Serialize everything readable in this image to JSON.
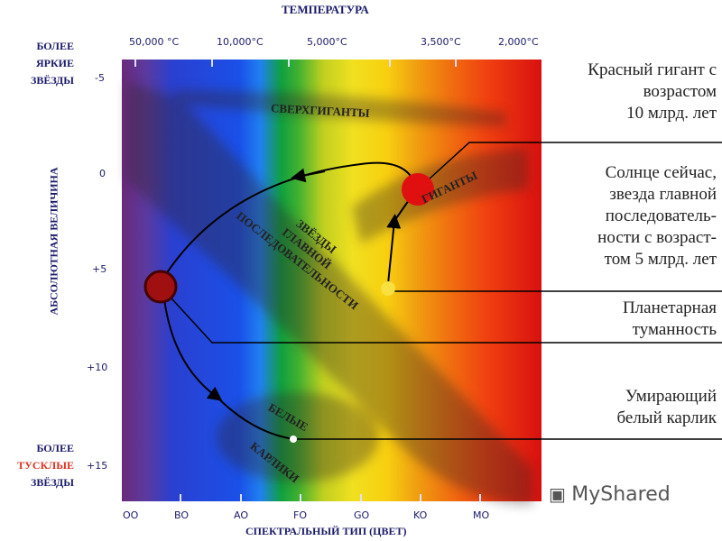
{
  "top_title": "ТЕМПЕРАТУРА",
  "temperatures": [
    "50,000 °C",
    "10,000°C",
    "5,000°C",
    "3,500°C",
    "2,000°C"
  ],
  "bright_label": [
    "БОЛЕЕ",
    "ЯРКИЕ",
    "ЗВЁЗДЫ"
  ],
  "dim_label": [
    "БОЛЕЕ",
    "ТУСКЛЫЕ",
    "ЗВЁЗДЫ"
  ],
  "y_axis_label": "АБСОЛЮТНАЯ ВЕЛИЧИНА",
  "y_ticks": [
    "-5",
    "0",
    "+5",
    "+10",
    "+15"
  ],
  "x_ticks": [
    "OO",
    "BO",
    "AO",
    "FO",
    "GO",
    "KO",
    "MO"
  ],
  "x_axis_label": "СПЕКТРАЛЬНЫЙ ТИП (ЦВЕТ)",
  "regions": {
    "supergiants": "СВЕРХГИГАНТЫ",
    "giants": "ГИГАНТЫ",
    "main_sequence": [
      "ЗВЁЗДЫ",
      "ГЛАВНОЙ",
      "ПОСЛЕДОВАТЕЛЬНОСТИ"
    ],
    "white_dwarfs": [
      "БЕЛЫЕ",
      "КАРЛИКИ"
    ]
  },
  "annotation_lines": [
    [
      "Красный гигант с",
      "возрастом",
      "10 млрд. лет"
    ],
    [
      "Солнце сейчас,",
      "звезда главной",
      "последователь-",
      "ности с возраст-",
      "том 5 млрд. лет"
    ],
    [
      "Планетарная",
      "туманность"
    ],
    [
      "Умирающий",
      "белый карлик"
    ]
  ],
  "watermark": "MyShared",
  "colors": {
    "red_giant": "#e01010",
    "sun": "#f8e040",
    "text_blue": "#1a1a6a",
    "dim_red": "#e03020"
  }
}
